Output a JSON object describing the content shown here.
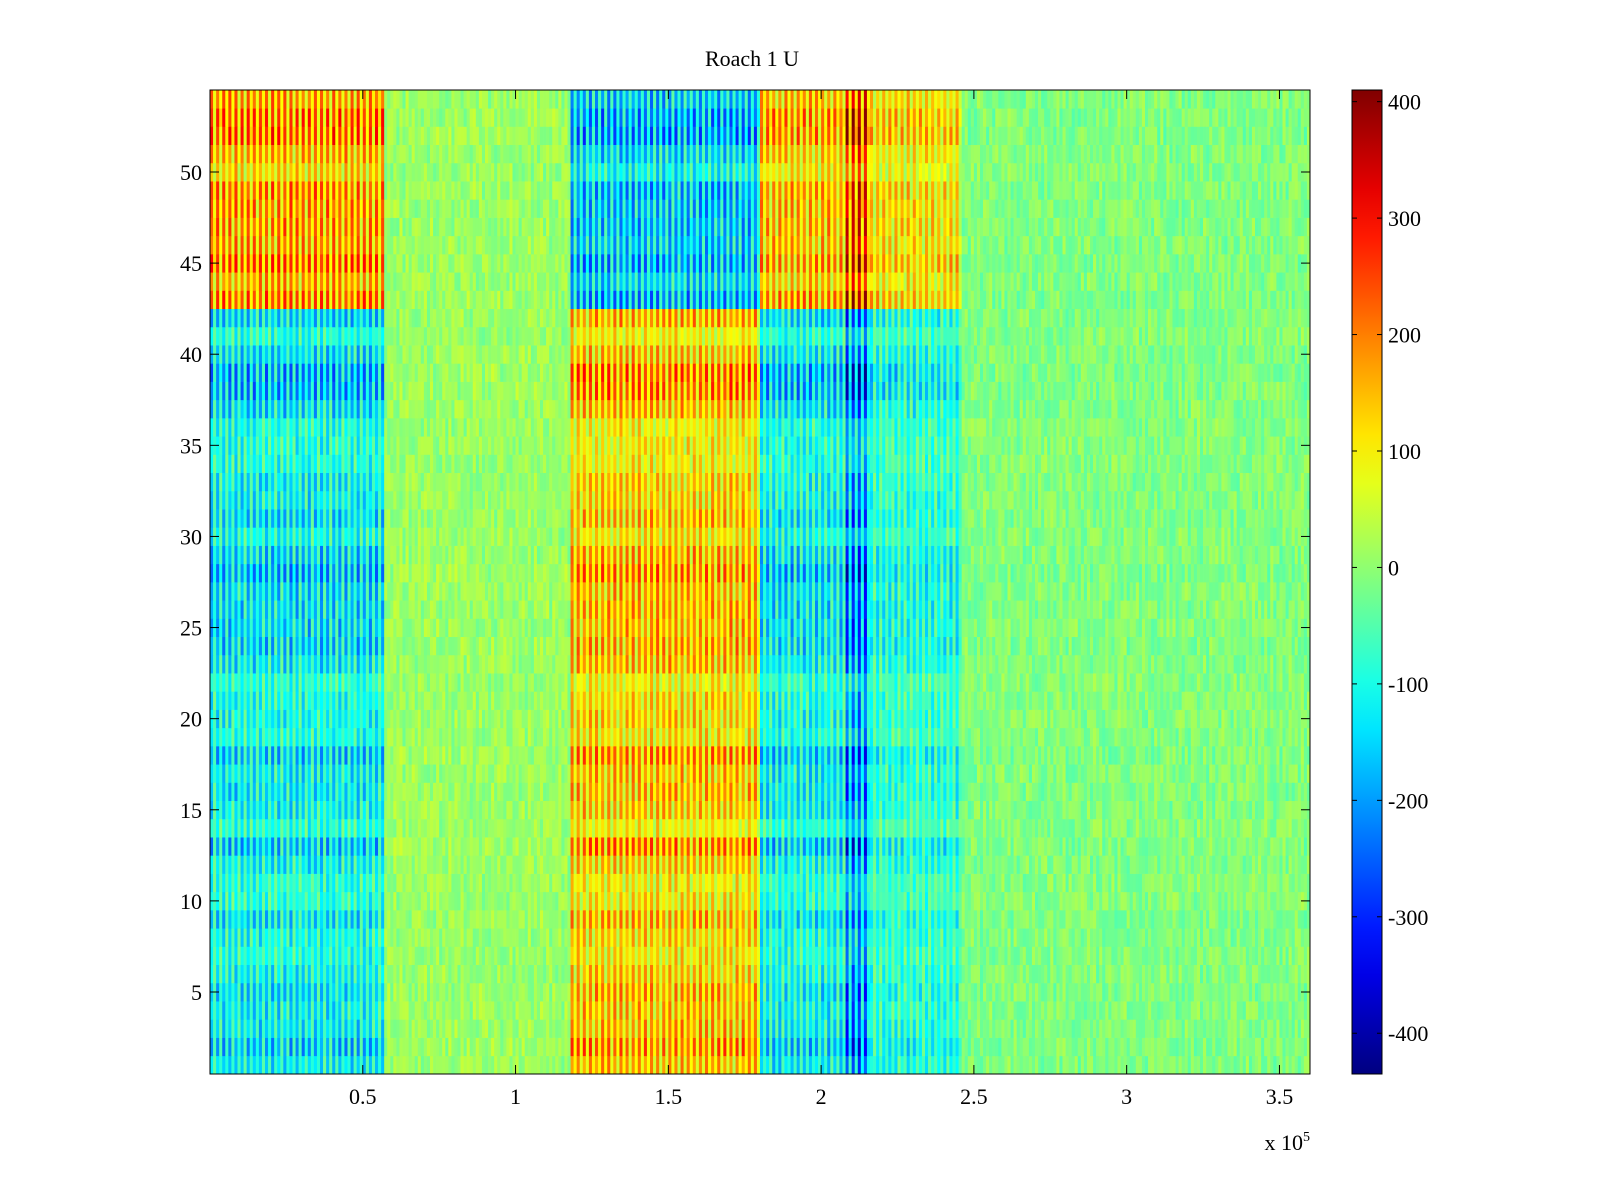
{
  "chart_data": {
    "type": "heatmap",
    "title": "Roach 1 U",
    "xlabel": "",
    "ylabel": "",
    "x_range": [
      0,
      360000
    ],
    "y_range": [
      0.5,
      54.5
    ],
    "x_ticks": [
      50000,
      100000,
      150000,
      200000,
      250000,
      300000,
      350000
    ],
    "x_tick_labels": [
      "0.5",
      "1",
      "1.5",
      "2",
      "2.5",
      "3",
      "3.5"
    ],
    "x_exponent_label": "x 10",
    "x_exponent_power": "5",
    "y_ticks": [
      5,
      10,
      15,
      20,
      25,
      30,
      35,
      40,
      45,
      50
    ],
    "y_tick_labels": [
      "5",
      "10",
      "15",
      "20",
      "25",
      "30",
      "35",
      "40",
      "45",
      "50"
    ],
    "colorbar": {
      "colormap": "jet",
      "range": [
        -435,
        410
      ],
      "ticks": [
        -400,
        -300,
        -200,
        -100,
        0,
        100,
        200,
        300,
        400
      ],
      "tick_labels": [
        "-400",
        "-300",
        "-200",
        "-100",
        "0",
        "100",
        "200",
        "300",
        "400"
      ]
    },
    "rows": 54,
    "row_groups": [
      {
        "name": "group-a",
        "rows": [
          43,
          54
        ],
        "sign": 1
      },
      {
        "name": "group-b",
        "rows": [
          24,
          42
        ],
        "sign": -1
      },
      {
        "name": "group-c",
        "rows": [
          1,
          23
        ],
        "sign": -1
      }
    ],
    "column_bands": [
      {
        "x_range": [
          0,
          57000
        ],
        "value_group_a": 300,
        "value_group_b": -250,
        "value_group_c": -220
      },
      {
        "x_range": [
          57000,
          118000
        ],
        "value": 20
      },
      {
        "x_range": [
          118000,
          180000
        ],
        "value_group_a": -280,
        "value_group_b": 270,
        "value_group_c": 260
      },
      {
        "x_range": [
          180000,
          208000
        ],
        "value_group_a": 260,
        "value_group_b": -240,
        "value_group_c": -220
      },
      {
        "x_range": [
          208000,
          216000
        ],
        "value_group_a": 420,
        "value_group_b": -400,
        "value_group_c": -380
      },
      {
        "x_range": [
          216000,
          246000
        ],
        "value_group_a": 200,
        "value_group_b": -180,
        "value_group_c": -160
      },
      {
        "x_range": [
          246000,
          360000
        ],
        "value": -20
      }
    ],
    "grid": false,
    "legend": "none"
  }
}
